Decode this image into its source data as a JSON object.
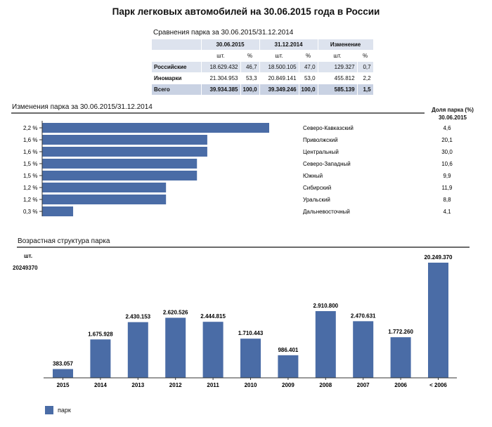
{
  "page_title": "Парк легковых автомобилей на 30.06.2015 года в России",
  "comparison": {
    "title": "Сравнения парка за 30.06.2015/31.12.2014",
    "period_headers": [
      "30.06.2015",
      "31.12.2014",
      "Изменение"
    ],
    "unit_headers": [
      "шт.",
      "%",
      "шт.",
      "%",
      "шт.",
      "%"
    ],
    "rows": [
      {
        "label": "Российские",
        "values": [
          "18.629.432",
          "46,7",
          "18.500.105",
          "47,0",
          "129.327",
          "0,7"
        ]
      },
      {
        "label": "Иномарки",
        "values": [
          "21.304.953",
          "53,3",
          "20.849.141",
          "53,0",
          "455.812",
          "2,2"
        ]
      },
      {
        "label": "Всего",
        "values": [
          "39.934.385",
          "100,0",
          "39.349.246",
          "100,0",
          "585.139",
          "1,5"
        ]
      }
    ]
  },
  "regions": {
    "title": "Изменения парка за 30.06.2015/31.12.2014",
    "share_header_line1": "Доля парка (%)",
    "share_header_line2": "30.06.2015",
    "items": [
      {
        "change_label": "2,2 %",
        "name": "Северо-Кавказский",
        "share": "4,6"
      },
      {
        "change_label": "1,6 %",
        "name": "Приволжский",
        "share": "20,1"
      },
      {
        "change_label": "1,6 %",
        "name": "Центральный",
        "share": "30,0"
      },
      {
        "change_label": "1,5 %",
        "name": "Северо-Западный",
        "share": "10,6"
      },
      {
        "change_label": "1,5 %",
        "name": "Южный",
        "share": "9,9"
      },
      {
        "change_label": "1,2 %",
        "name": "Сибирский",
        "share": "11,9"
      },
      {
        "change_label": "1,2 %",
        "name": "Уральский",
        "share": "8,8"
      },
      {
        "change_label": "0,3 %",
        "name": "Дальневосточный",
        "share": "4,1"
      }
    ]
  },
  "age": {
    "title": "Возрастная структура парка",
    "unit_label": "шт.",
    "max_label": "20249370",
    "legend_label": "парк"
  },
  "colors": {
    "bar": "#4a6ca6",
    "table_header": "#dde3ee",
    "table_total": "#c9d2e3",
    "rule": "#6b6b6b"
  },
  "chart_data": [
    {
      "type": "bar",
      "orientation": "horizontal",
      "title": "Изменения парка за 30.06.2015/31.12.2014",
      "categories": [
        "Северо-Кавказский",
        "Приволжский",
        "Центральный",
        "Северо-Западный",
        "Южный",
        "Сибирский",
        "Уральский",
        "Дальневосточный"
      ],
      "values": [
        2.2,
        1.6,
        1.6,
        1.5,
        1.5,
        1.2,
        1.2,
        0.3
      ],
      "unit": "%",
      "xlim": [
        0,
        2.2
      ]
    },
    {
      "type": "bar",
      "title": "Возрастная структура парка",
      "ylabel": "шт.",
      "categories": [
        "2015",
        "2014",
        "2013",
        "2012",
        "2011",
        "2010",
        "2009",
        "2008",
        "2007",
        "2006",
        "< 2006"
      ],
      "values": [
        383057,
        1675928,
        2430153,
        2620526,
        2444815,
        1710443,
        986401,
        2910800,
        2470631,
        1772260,
        20249370
      ],
      "labels": [
        "383.057",
        "1.675.928",
        "2.430.153",
        "2.620.526",
        "2.444.815",
        "1.710.443",
        "986.401",
        "2.910.800",
        "2.470.631",
        "1.772.260",
        "20.249.370"
      ],
      "series": [
        {
          "name": "парк"
        }
      ]
    }
  ]
}
